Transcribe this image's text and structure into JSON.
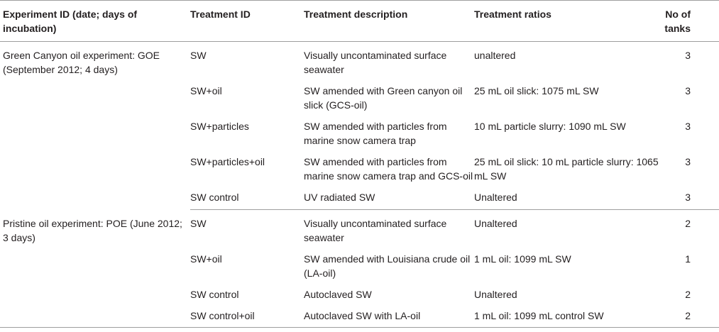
{
  "headers": {
    "experiment": "Experiment ID (date; days of incubation)",
    "treatment_id": "Treatment ID",
    "description": "Treatment description",
    "ratios": "Treatment ratios",
    "tanks": "No of tanks"
  },
  "groups": [
    {
      "experiment": "Green Canyon oil experiment: GOE (September 2012; 4 days)",
      "rows": [
        {
          "treatment_id": "SW",
          "description": "Visually uncontaminated surface seawater",
          "ratios": "unaltered",
          "tanks": "3"
        },
        {
          "treatment_id": "SW+oil",
          "description": "SW amended with Green canyon oil slick (GCS-oil)",
          "ratios": "25 mL oil slick: 1075 mL SW",
          "tanks": "3"
        },
        {
          "treatment_id": "SW+particles",
          "description": "SW amended with particles from marine snow camera trap",
          "ratios": "10 mL particle slurry: 1090 mL SW",
          "tanks": "3"
        },
        {
          "treatment_id": "SW+particles+oil",
          "description": "SW amended with particles from marine snow camera trap and GCS-oil",
          "ratios": "25 mL oil slick: 10 mL particle slurry: 1065 mL SW",
          "tanks": "3"
        },
        {
          "treatment_id": "SW control",
          "description": "UV radiated SW",
          "ratios": "Unaltered",
          "tanks": "3"
        }
      ]
    },
    {
      "experiment": "Pristine oil experiment: POE (June 2012; 3 days)",
      "rows": [
        {
          "treatment_id": "SW",
          "description": "Visually uncontaminated surface seawater",
          "ratios": "Unaltered",
          "tanks": "2"
        },
        {
          "treatment_id": "SW+oil",
          "description": "SW amended with Louisiana crude oil (LA-oil)",
          "ratios": "1 mL oil: 1099 mL SW",
          "tanks": "1"
        },
        {
          "treatment_id": "SW control",
          "description": "Autoclaved SW",
          "ratios": "Unaltered",
          "tanks": "2"
        },
        {
          "treatment_id": "SW control+oil",
          "description": "Autoclaved SW with LA-oil",
          "ratios": "1 mL oil: 1099 mL control SW",
          "tanks": "2"
        }
      ]
    }
  ]
}
